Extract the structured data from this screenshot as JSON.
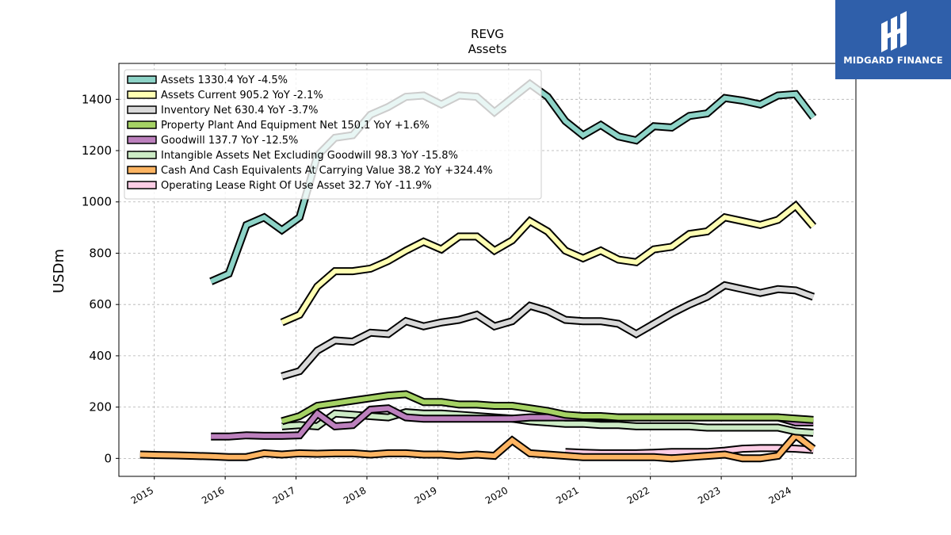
{
  "chart_data": {
    "type": "line",
    "title": "REVG",
    "subtitle": "Assets",
    "ylabel": "USDm",
    "xlabel": "",
    "ylim": [
      -70,
      1540
    ],
    "xlim": [
      2014.5,
      2024.9
    ],
    "yticks": [
      0,
      200,
      400,
      600,
      800,
      1000,
      1200,
      1400
    ],
    "xticks": [
      "2015",
      "2016",
      "2017",
      "2018",
      "2019",
      "2020",
      "2021",
      "2022",
      "2023",
      "2024"
    ],
    "grid": true,
    "legend_position": "top-left",
    "series": [
      {
        "name": "Assets  1330.4 YoY -4.5%",
        "color": "#8dd3c7",
        "x": [
          2015.8,
          2016.05,
          2016.3,
          2016.55,
          2016.8,
          2017.05,
          2017.3,
          2017.55,
          2017.8,
          2018.05,
          2018.3,
          2018.55,
          2018.8,
          2019.05,
          2019.3,
          2019.55,
          2019.8,
          2020.05,
          2020.3,
          2020.55,
          2020.8,
          2021.05,
          2021.3,
          2021.55,
          2021.8,
          2022.05,
          2022.3,
          2022.55,
          2022.8,
          2023.05,
          2023.3,
          2023.55,
          2023.8,
          2024.05,
          2024.3
        ],
        "values": [
          690,
          720,
          910,
          940,
          890,
          940,
          1180,
          1250,
          1260,
          1340,
          1370,
          1410,
          1415,
          1380,
          1415,
          1410,
          1350,
          1405,
          1460,
          1410,
          1315,
          1260,
          1300,
          1255,
          1240,
          1295,
          1290,
          1335,
          1345,
          1405,
          1395,
          1380,
          1415,
          1420,
          1330
        ]
      },
      {
        "name": "Assets Current  905.2 YoY -2.1%",
        "color": "#ffffb3",
        "x": [
          2016.8,
          2017.05,
          2017.3,
          2017.55,
          2017.8,
          2018.05,
          2018.3,
          2018.55,
          2018.8,
          2019.05,
          2019.3,
          2019.55,
          2019.8,
          2020.05,
          2020.3,
          2020.55,
          2020.8,
          2021.05,
          2021.3,
          2021.55,
          2021.8,
          2022.05,
          2022.3,
          2022.55,
          2022.8,
          2023.05,
          2023.3,
          2023.55,
          2023.8,
          2024.05,
          2024.3
        ],
        "values": [
          530,
          560,
          670,
          730,
          730,
          740,
          770,
          810,
          845,
          815,
          865,
          865,
          810,
          850,
          925,
          885,
          810,
          780,
          810,
          775,
          765,
          815,
          825,
          875,
          885,
          940,
          925,
          910,
          930,
          985,
          905
        ]
      },
      {
        "name": "Inventory Net  630.4 YoY -3.7%",
        "color": "#d9d9d9",
        "x": [
          2016.8,
          2017.05,
          2017.3,
          2017.55,
          2017.8,
          2018.05,
          2018.3,
          2018.55,
          2018.8,
          2019.05,
          2019.3,
          2019.55,
          2019.8,
          2020.05,
          2020.3,
          2020.55,
          2020.8,
          2021.05,
          2021.3,
          2021.55,
          2021.8,
          2022.05,
          2022.3,
          2022.55,
          2022.8,
          2023.05,
          2023.3,
          2023.55,
          2023.8,
          2024.05,
          2024.3
        ],
        "values": [
          320,
          340,
          420,
          460,
          455,
          490,
          485,
          535,
          515,
          530,
          540,
          560,
          515,
          535,
          595,
          575,
          540,
          535,
          535,
          525,
          485,
          525,
          565,
          600,
          630,
          675,
          660,
          645,
          660,
          655,
          630
        ]
      },
      {
        "name": "Property Plant And Equipment Net  150.1 YoY +1.6%",
        "color": "#a5d264",
        "x": [
          2016.8,
          2017.05,
          2017.3,
          2017.55,
          2017.8,
          2018.05,
          2018.3,
          2018.55,
          2018.8,
          2019.05,
          2019.3,
          2019.55,
          2019.8,
          2020.05,
          2020.3,
          2020.55,
          2020.8,
          2021.05,
          2021.3,
          2021.55,
          2021.8,
          2022.05,
          2022.3,
          2022.55,
          2022.8,
          2023.05,
          2023.3,
          2023.55,
          2023.8,
          2024.05,
          2024.3
        ],
        "values": [
          145,
          165,
          205,
          215,
          225,
          235,
          245,
          250,
          220,
          220,
          210,
          210,
          205,
          205,
          195,
          185,
          170,
          165,
          165,
          160,
          160,
          160,
          160,
          160,
          160,
          160,
          160,
          160,
          160,
          155,
          150
        ]
      },
      {
        "name": "Goodwill  137.7 YoY -12.5%",
        "color": "#bc80bd",
        "x": [
          2015.8,
          2016.05,
          2016.3,
          2016.55,
          2016.8,
          2017.05,
          2017.3,
          2017.55,
          2017.8,
          2018.05,
          2018.3,
          2018.55,
          2018.8,
          2019.05,
          2019.3,
          2019.55,
          2019.8,
          2020.05,
          2020.3,
          2020.55,
          2020.8,
          2021.05,
          2021.3,
          2021.55,
          2021.8,
          2022.05,
          2022.3,
          2022.55,
          2022.8,
          2023.05,
          2023.3,
          2023.55,
          2023.8,
          2024.05,
          2024.3
        ],
        "values": [
          85,
          85,
          90,
          88,
          88,
          90,
          175,
          125,
          130,
          190,
          195,
          160,
          155,
          155,
          155,
          155,
          155,
          155,
          160,
          160,
          160,
          160,
          160,
          160,
          160,
          160,
          160,
          160,
          160,
          160,
          160,
          160,
          160,
          140,
          140
        ]
      },
      {
        "name": "Intangible Assets Net Excluding Goodwill  98.3 YoY -15.8%",
        "color": "#ccebc5",
        "x": [
          2016.8,
          2017.05,
          2017.3,
          2017.55,
          2017.8,
          2018.05,
          2018.3,
          2018.55,
          2018.8,
          2019.05,
          2019.3,
          2019.55,
          2019.8,
          2020.05,
          2020.3,
          2020.55,
          2020.8,
          2021.05,
          2021.3,
          2021.55,
          2021.8,
          2022.05,
          2022.3,
          2022.55,
          2022.8,
          2023.05,
          2023.3,
          2023.55,
          2023.8,
          2024.05,
          2024.3
        ],
        "values": [
          125,
          130,
          125,
          175,
          170,
          165,
          160,
          180,
          175,
          175,
          170,
          165,
          160,
          155,
          145,
          140,
          135,
          135,
          130,
          130,
          125,
          125,
          125,
          125,
          120,
          120,
          120,
          120,
          120,
          105,
          100
        ]
      },
      {
        "name": "Cash And Cash Equivalents At Carrying Value  38.2 YoY +324.4%",
        "color": "#fdb462",
        "x": [
          2014.8,
          2015.05,
          2015.3,
          2015.55,
          2015.8,
          2016.05,
          2016.3,
          2016.55,
          2016.8,
          2017.05,
          2017.3,
          2017.55,
          2017.8,
          2018.05,
          2018.3,
          2018.55,
          2018.8,
          2019.05,
          2019.3,
          2019.55,
          2019.8,
          2020.05,
          2020.3,
          2020.55,
          2020.8,
          2021.05,
          2021.3,
          2021.55,
          2021.8,
          2022.05,
          2022.3,
          2022.55,
          2022.8,
          2023.05,
          2023.3,
          2023.55,
          2023.8,
          2024.05,
          2024.3
        ],
        "values": [
          15,
          13,
          12,
          10,
          8,
          5,
          5,
          20,
          15,
          20,
          18,
          20,
          20,
          15,
          20,
          20,
          15,
          15,
          10,
          15,
          10,
          70,
          20,
          15,
          10,
          5,
          5,
          5,
          5,
          5,
          0,
          5,
          10,
          15,
          0,
          0,
          10,
          90,
          38
        ]
      },
      {
        "name": "Operating Lease Right Of Use Asset  32.7 YoY -11.9%",
        "color": "#fccde5",
        "x": [
          2020.8,
          2021.05,
          2021.3,
          2021.55,
          2021.8,
          2022.05,
          2022.3,
          2022.55,
          2022.8,
          2023.05,
          2023.3,
          2023.55,
          2023.8,
          2024.05,
          2024.3
        ],
        "values": [
          25,
          22,
          20,
          20,
          20,
          22,
          25,
          25,
          25,
          30,
          38,
          40,
          40,
          38,
          33
        ]
      }
    ]
  },
  "logo": {
    "text": "MIDGARD FINANCE"
  }
}
